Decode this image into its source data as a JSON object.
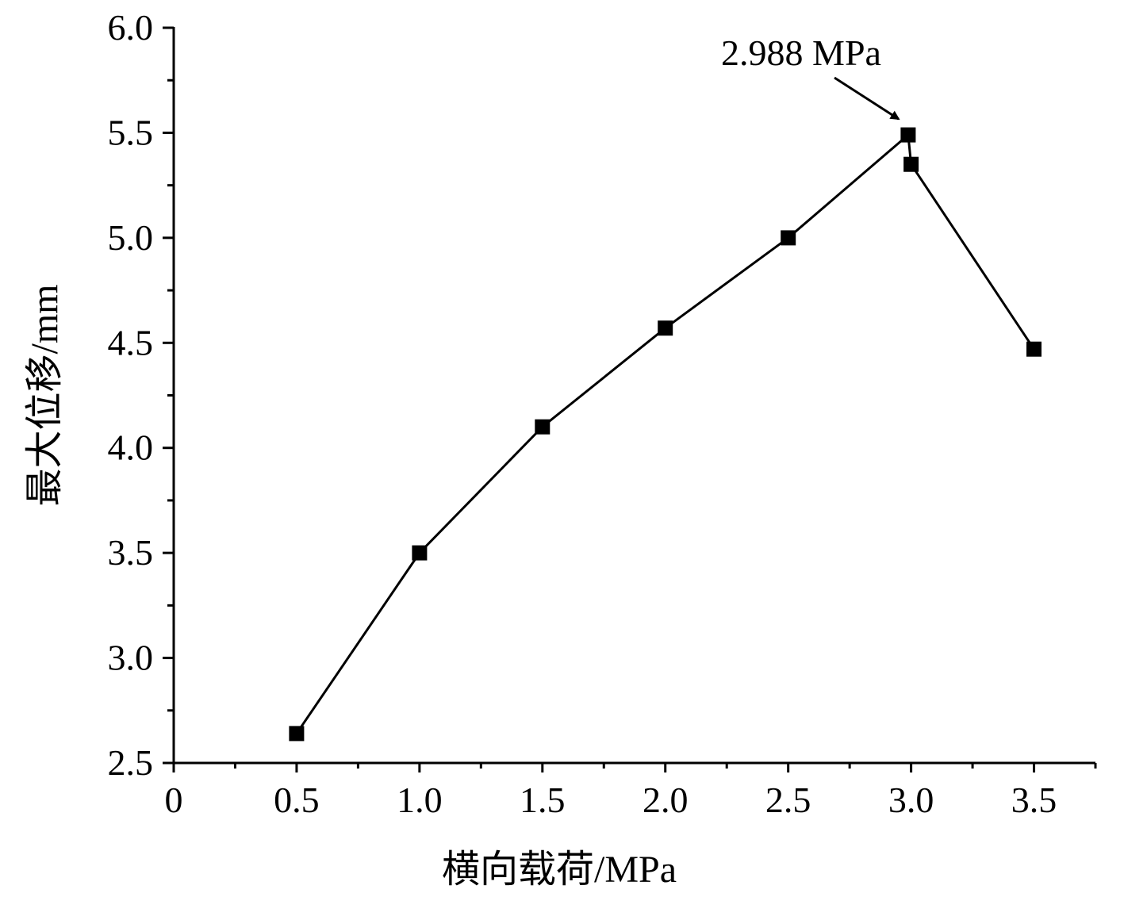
{
  "chart_data": {
    "type": "line",
    "xlabel": "横向载荷/MPa",
    "ylabel": "最大位移/mm",
    "xlim": [
      0,
      3.75
    ],
    "ylim": [
      2.5,
      6.0
    ],
    "x_ticks": [
      "0",
      "0.5",
      "1.0",
      "1.5",
      "2.0",
      "2.5",
      "3.0",
      "3.5"
    ],
    "x_tick_values": [
      0,
      0.5,
      1.0,
      1.5,
      2.0,
      2.5,
      3.0,
      3.5
    ],
    "y_ticks": [
      "2.5",
      "3.0",
      "3.5",
      "4.0",
      "4.5",
      "5.0",
      "5.5",
      "6.0"
    ],
    "y_tick_values": [
      2.5,
      3.0,
      3.5,
      4.0,
      4.5,
      5.0,
      5.5,
      6.0
    ],
    "series": [
      {
        "x": [
          0.5,
          1.0,
          1.5,
          2.0,
          2.5,
          2.988,
          3.0,
          3.5
        ],
        "y": [
          2.64,
          3.5,
          4.1,
          4.57,
          5.0,
          5.49,
          5.35,
          4.47
        ]
      }
    ],
    "annotations": [
      {
        "text": "2.988 MPa",
        "target_x": 2.988,
        "target_y": 5.49
      }
    ],
    "grid": false,
    "legend": "none",
    "line_color": "#000000",
    "marker": "square"
  }
}
